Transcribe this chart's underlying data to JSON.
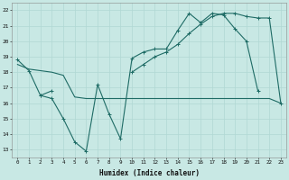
{
  "xlabel": "Humidex (Indice chaleur)",
  "xlim": [
    -0.5,
    23.5
  ],
  "ylim": [
    12.5,
    22.5
  ],
  "xticks": [
    0,
    1,
    2,
    3,
    4,
    5,
    6,
    7,
    8,
    9,
    10,
    11,
    12,
    13,
    14,
    15,
    16,
    17,
    18,
    19,
    20,
    21,
    22,
    23
  ],
  "yticks": [
    13,
    14,
    15,
    16,
    17,
    18,
    19,
    20,
    21,
    22
  ],
  "bg_color": "#c8e8e4",
  "line_color": "#1e6b65",
  "grid_color": "#b0d8d4",
  "line1_x": [
    0,
    1,
    2,
    3,
    4,
    5,
    6,
    7,
    8,
    9,
    10,
    11,
    12,
    13,
    14,
    15,
    16,
    17,
    18,
    19,
    20,
    21
  ],
  "line1_y": [
    18.8,
    18.1,
    16.5,
    16.3,
    15.0,
    13.5,
    12.9,
    17.2,
    15.3,
    13.7,
    18.9,
    19.3,
    19.5,
    19.5,
    20.7,
    21.8,
    21.2,
    21.8,
    21.7,
    20.8,
    20.0,
    16.8
  ],
  "line2_x": [
    0,
    1,
    2,
    3,
    4,
    5,
    6,
    7,
    8,
    9,
    10,
    11,
    12,
    13,
    14,
    15,
    16,
    17,
    18,
    19,
    20,
    21,
    22,
    23
  ],
  "line2_y": [
    18.5,
    18.2,
    18.1,
    18.0,
    17.8,
    16.4,
    16.3,
    16.3,
    16.3,
    16.3,
    16.3,
    16.3,
    16.3,
    16.3,
    16.3,
    16.3,
    16.3,
    16.3,
    16.3,
    16.3,
    16.3,
    16.3,
    16.3,
    16.0
  ],
  "line3_x": [
    2,
    3,
    10,
    11,
    12,
    13,
    14,
    15,
    16,
    17,
    18,
    19,
    20,
    21,
    22,
    23
  ],
  "line3_y": [
    16.5,
    16.8,
    18.0,
    18.5,
    19.0,
    19.3,
    19.8,
    20.5,
    21.1,
    21.6,
    21.8,
    21.8,
    21.6,
    21.5,
    21.5,
    16.0
  ]
}
